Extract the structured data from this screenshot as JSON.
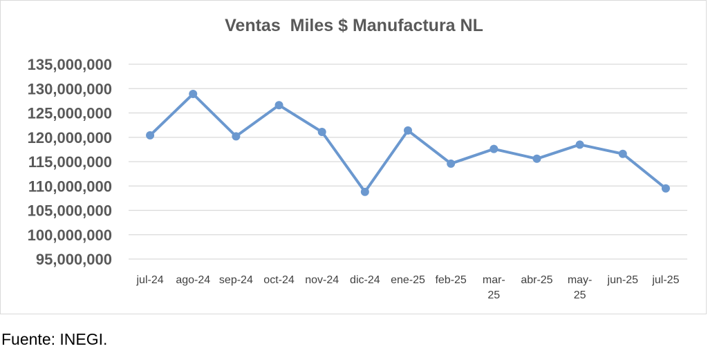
{
  "chart_data": {
    "type": "line",
    "title": "Ventas  Miles $ Manufactura NL",
    "xlabel": "",
    "ylabel": "",
    "categories": [
      "jul-24",
      "ago-24",
      "sep-24",
      "oct-24",
      "nov-24",
      "dic-24",
      "ene-25",
      "feb-25",
      "mar-25",
      "abr-25",
      "may-25",
      "jun-25",
      "jul-25"
    ],
    "category_label_lines": [
      [
        "jul-24"
      ],
      [
        "ago-24"
      ],
      [
        "sep-24"
      ],
      [
        "oct-24"
      ],
      [
        "nov-24"
      ],
      [
        "dic-24"
      ],
      [
        "ene-25"
      ],
      [
        "feb-25"
      ],
      [
        "mar-",
        "25"
      ],
      [
        "abr-25"
      ],
      [
        "may-",
        "25"
      ],
      [
        "jun-25"
      ],
      [
        "jul-25"
      ]
    ],
    "series": [
      {
        "values": [
          120400000,
          128900000,
          120200000,
          126600000,
          121100000,
          108800000,
          121400000,
          114600000,
          117600000,
          115600000,
          118500000,
          116600000,
          109500000
        ],
        "color": "#6b98cf"
      }
    ],
    "ylim": [
      95000000,
      135000000
    ],
    "yticks": [
      95000000,
      100000000,
      105000000,
      110000000,
      115000000,
      120000000,
      125000000,
      130000000,
      135000000
    ],
    "ytick_labels": [
      "95,000,000",
      "100,000,000",
      "105,000,000",
      "110,000,000",
      "115,000,000",
      "120,000,000",
      "125,000,000",
      "130,000,000",
      "135,000,000"
    ],
    "grid": true,
    "legend": "none"
  },
  "source_note": "Fuente: INEGI."
}
